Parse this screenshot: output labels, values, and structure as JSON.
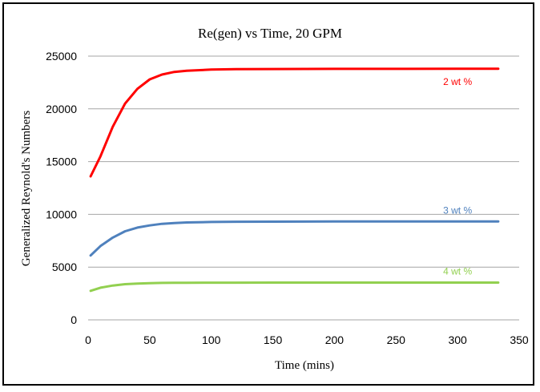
{
  "chart_data": {
    "type": "line",
    "title": "Re(gen) vs Time, 20 GPM",
    "xlabel": "Time (mins)",
    "ylabel": "Generalized Reynold's Numbers",
    "xlim": [
      0,
      350
    ],
    "ylim": [
      0,
      25000
    ],
    "xticks": [
      0,
      50,
      100,
      150,
      200,
      250,
      300,
      350
    ],
    "yticks": [
      0,
      5000,
      10000,
      15000,
      20000,
      25000
    ],
    "x_tick_labels": [
      "0",
      "50",
      "100",
      "150",
      "200",
      "250",
      "300",
      "350"
    ],
    "y_tick_labels": [
      "0",
      "5000",
      "10000",
      "15000",
      "20000",
      "25000"
    ],
    "grid": "horizontal",
    "series": [
      {
        "name": "2 wt %",
        "color": "#ff0000",
        "x": [
          2,
          10,
          20,
          30,
          40,
          50,
          60,
          70,
          80,
          100,
          120,
          150,
          200,
          250,
          300,
          333
        ],
        "y": [
          13600,
          15500,
          18300,
          20500,
          21900,
          22800,
          23250,
          23500,
          23620,
          23720,
          23760,
          23780,
          23790,
          23795,
          23800,
          23800
        ]
      },
      {
        "name": "3 wt %",
        "color": "#4f81bd",
        "x": [
          2,
          10,
          20,
          30,
          40,
          50,
          60,
          70,
          80,
          100,
          120,
          150,
          200,
          250,
          300,
          333
        ],
        "y": [
          6100,
          7000,
          7800,
          8400,
          8750,
          8950,
          9100,
          9180,
          9230,
          9280,
          9300,
          9310,
          9320,
          9320,
          9320,
          9320
        ]
      },
      {
        "name": "4 wt %",
        "color": "#92d050",
        "x": [
          2,
          10,
          20,
          30,
          40,
          50,
          60,
          70,
          80,
          100,
          120,
          150,
          200,
          250,
          300,
          333
        ],
        "y": [
          2750,
          3050,
          3250,
          3380,
          3440,
          3480,
          3500,
          3510,
          3520,
          3525,
          3528,
          3530,
          3530,
          3530,
          3530,
          3530
        ]
      }
    ]
  }
}
